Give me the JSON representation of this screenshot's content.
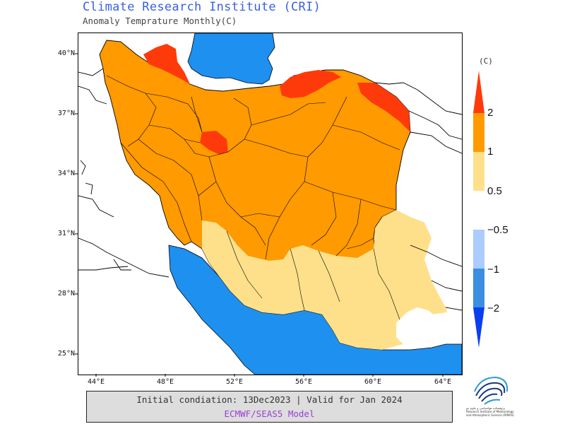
{
  "header": {
    "title": "Climate Research Institute (CRI)",
    "subtitle": "Anomaly Temprature Monthly(C)"
  },
  "map": {
    "lat_labels": [
      "40°N",
      "37°N",
      "34°N",
      "31°N",
      "28°N",
      "25°N"
    ],
    "lon_labels": [
      "44°E",
      "48°E",
      "52°E",
      "56°E",
      "60°E",
      "64°E"
    ],
    "colors": {
      "sea": "#1e90f0",
      "anomaly_2": "#ff3a0a",
      "anomaly_1_2": "#ff9a00",
      "anomaly_0_5_1": "#ffe08a",
      "neutral": "#ffffff"
    }
  },
  "legend": {
    "unit": "(C)",
    "labels": [
      "2",
      "1",
      "0.5",
      "−0.5",
      "−1",
      "−2"
    ],
    "colors": [
      "#ff3a0a",
      "#ff9a00",
      "#ffe08a",
      "#aaccff",
      "#3b8fe0",
      "#0a3ff0"
    ]
  },
  "footer": {
    "line1": "Initial condiation: 13Dec2023 | Valid for Jan 2024",
    "line2": "ECMWF/SEAS5 Model"
  },
  "logo": {
    "icon": "cri-logo-icon",
    "text": "پژوهشکده هواشناسی و علوم جو Research Institute of Meteorology and Atmospheric Science (RIMAS)"
  }
}
